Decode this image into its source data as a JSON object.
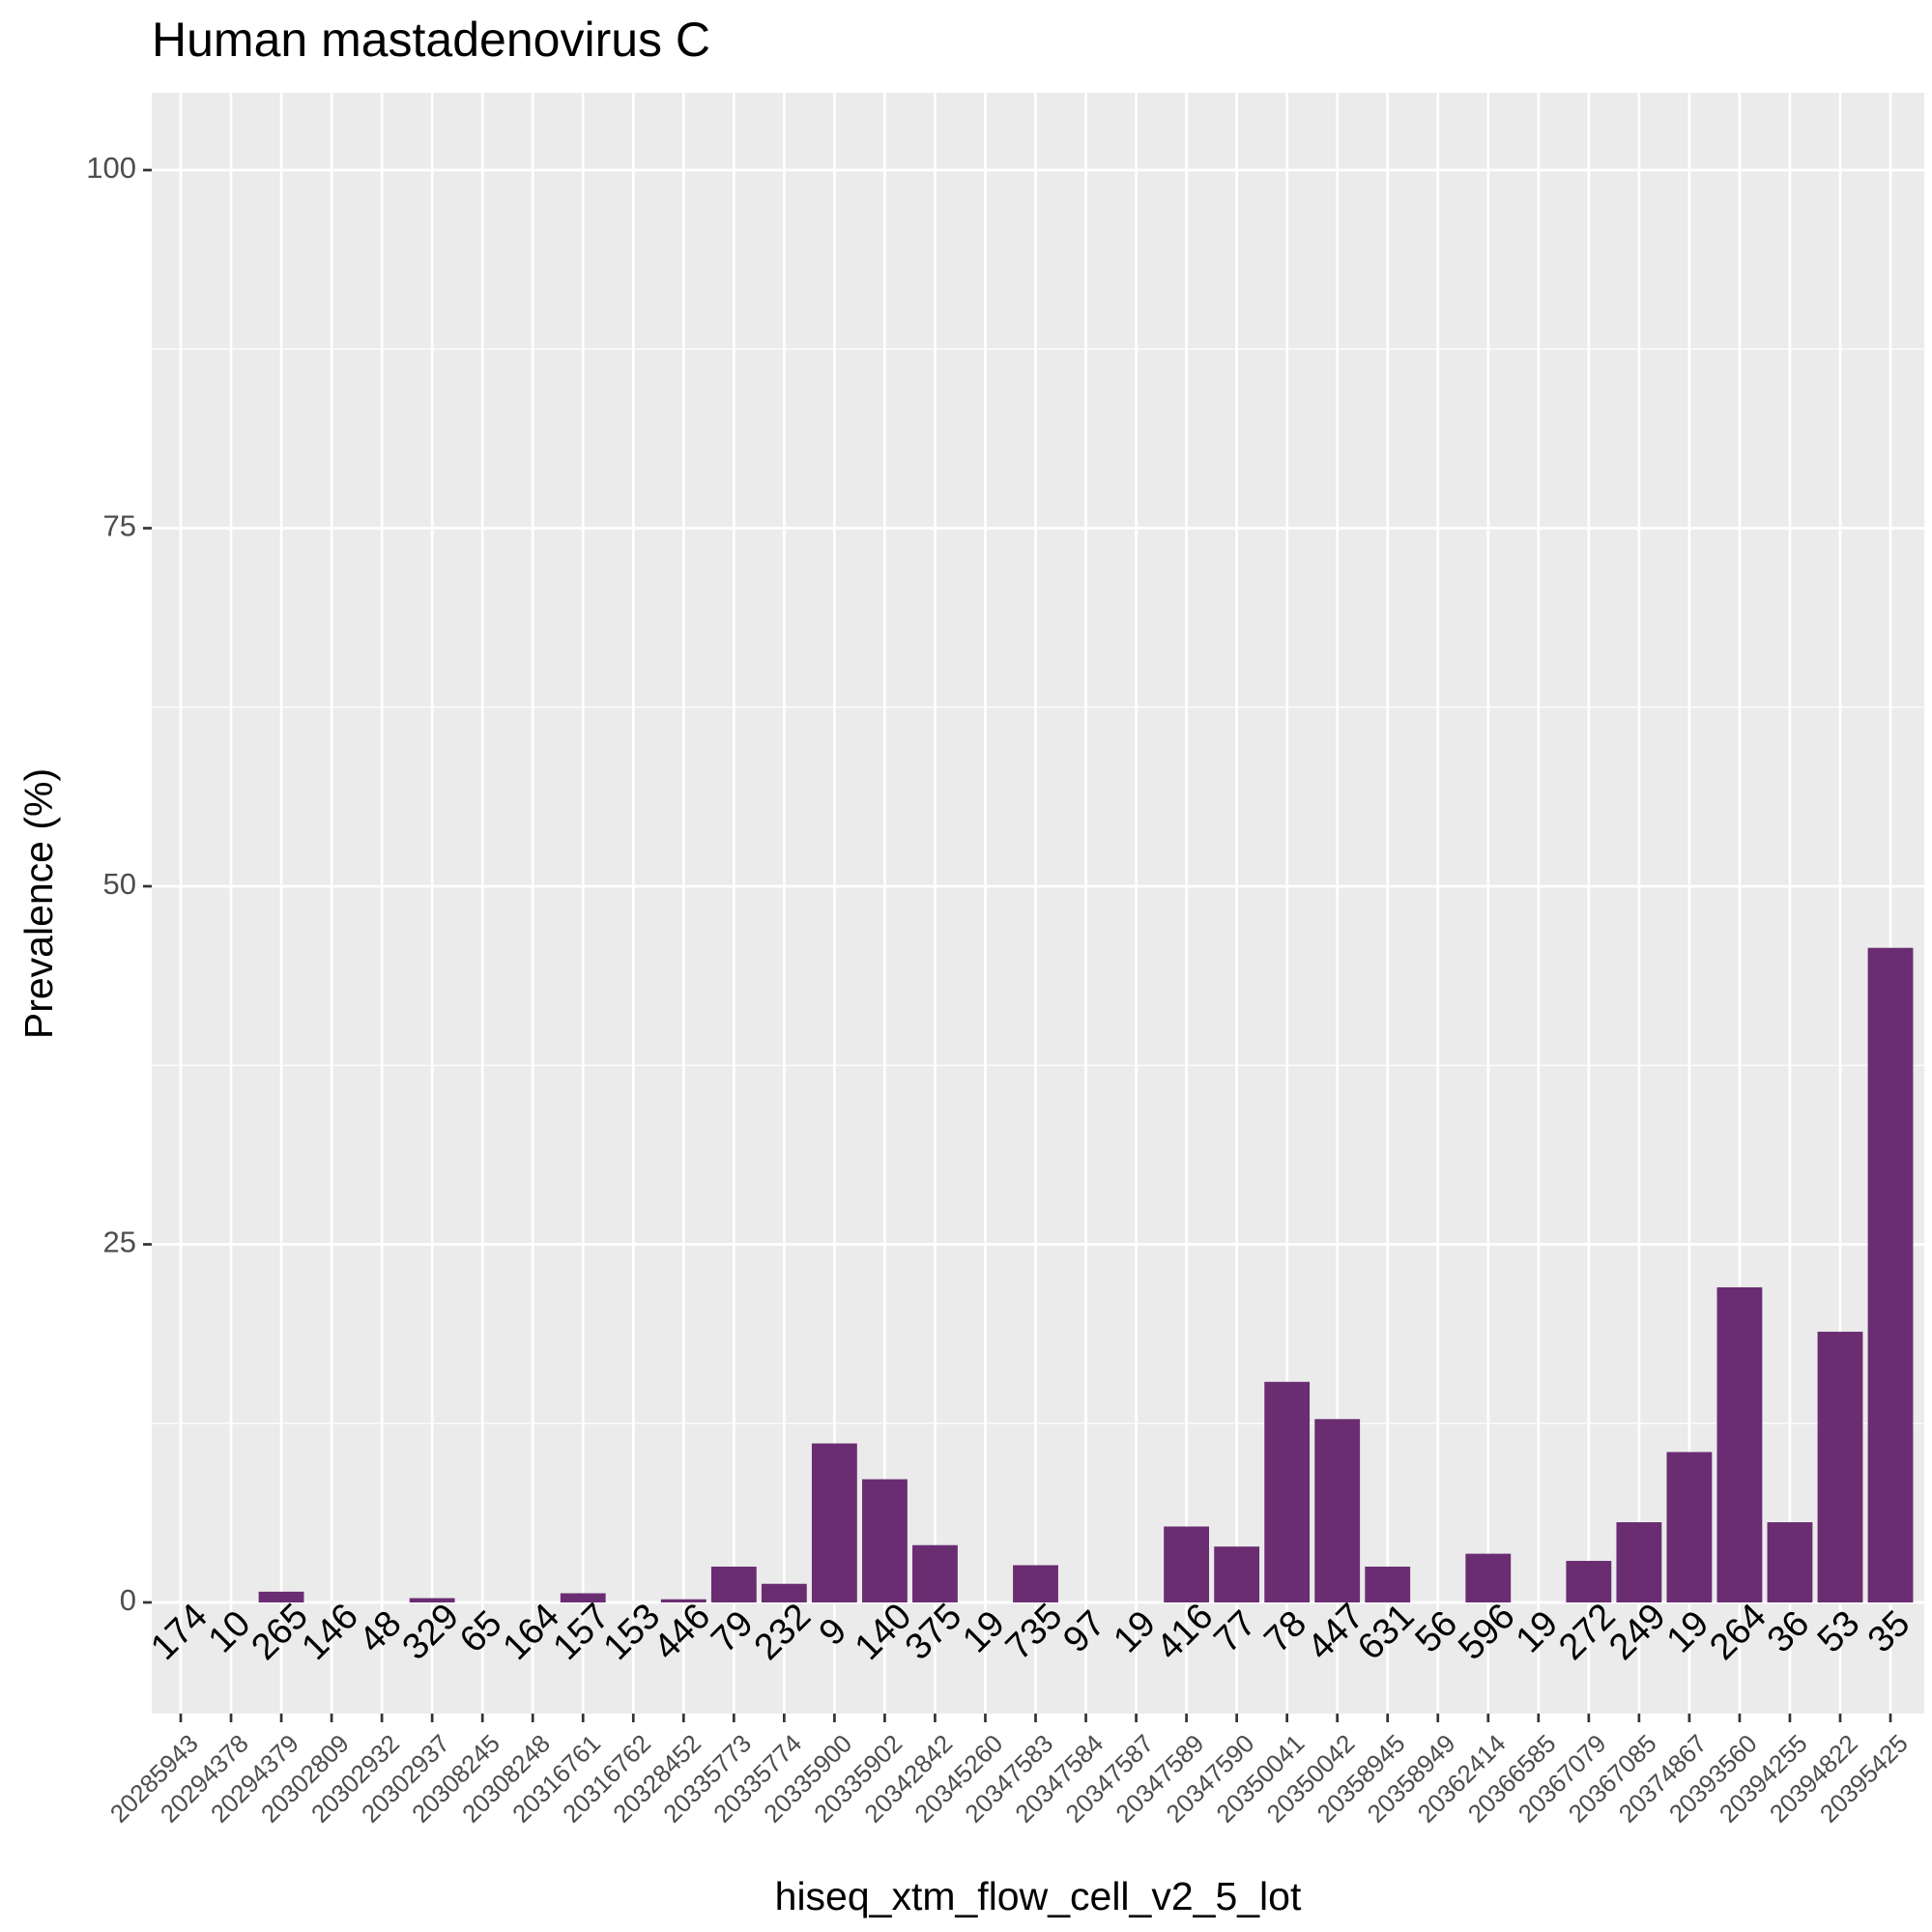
{
  "chart_data": {
    "type": "bar",
    "title": "Human mastadenovirus C",
    "xlabel": "hiseq_xtm_flow_cell_v2_5_lot",
    "ylabel": "Prevalence (%)",
    "ylim": [
      -8,
      105
    ],
    "yticks": [
      0,
      25,
      50,
      75,
      100
    ],
    "grid": true,
    "bar_color": "#6a2d72",
    "panel_color": "#ebebeb",
    "categories": [
      "20285943",
      "20294378",
      "20294379",
      "20302809",
      "20302932",
      "20302937",
      "20308245",
      "20308248",
      "20316761",
      "20316762",
      "20328452",
      "20335773",
      "20335774",
      "20335900",
      "20335902",
      "20342842",
      "20345260",
      "20347583",
      "20347584",
      "20347587",
      "20347589",
      "20347590",
      "20350041",
      "20350042",
      "20358945",
      "20358949",
      "20362414",
      "20366585",
      "20367079",
      "20367085",
      "20374867",
      "20393560",
      "20394255",
      "20394822",
      "20395425"
    ],
    "values": [
      0,
      0,
      0.75,
      0,
      0,
      0.3,
      0,
      0,
      0.64,
      0,
      0.22,
      2.5,
      1.3,
      11.1,
      8.6,
      4.0,
      0,
      2.6,
      0,
      0,
      5.3,
      3.9,
      15.4,
      12.8,
      2.5,
      0,
      3.4,
      0,
      2.9,
      5.6,
      10.5,
      22.0,
      5.6,
      18.9,
      45.7
    ],
    "n_labels": [
      "174",
      "10",
      "265",
      "146",
      "48",
      "329",
      "65",
      "164",
      "157",
      "153",
      "446",
      "79",
      "232",
      "9",
      "140",
      "375",
      "19",
      "735",
      "97",
      "19",
      "416",
      "77",
      "78",
      "447",
      "631",
      "56",
      "596",
      "19",
      "272",
      "249",
      "19",
      "264",
      "36",
      "53",
      "35"
    ]
  }
}
